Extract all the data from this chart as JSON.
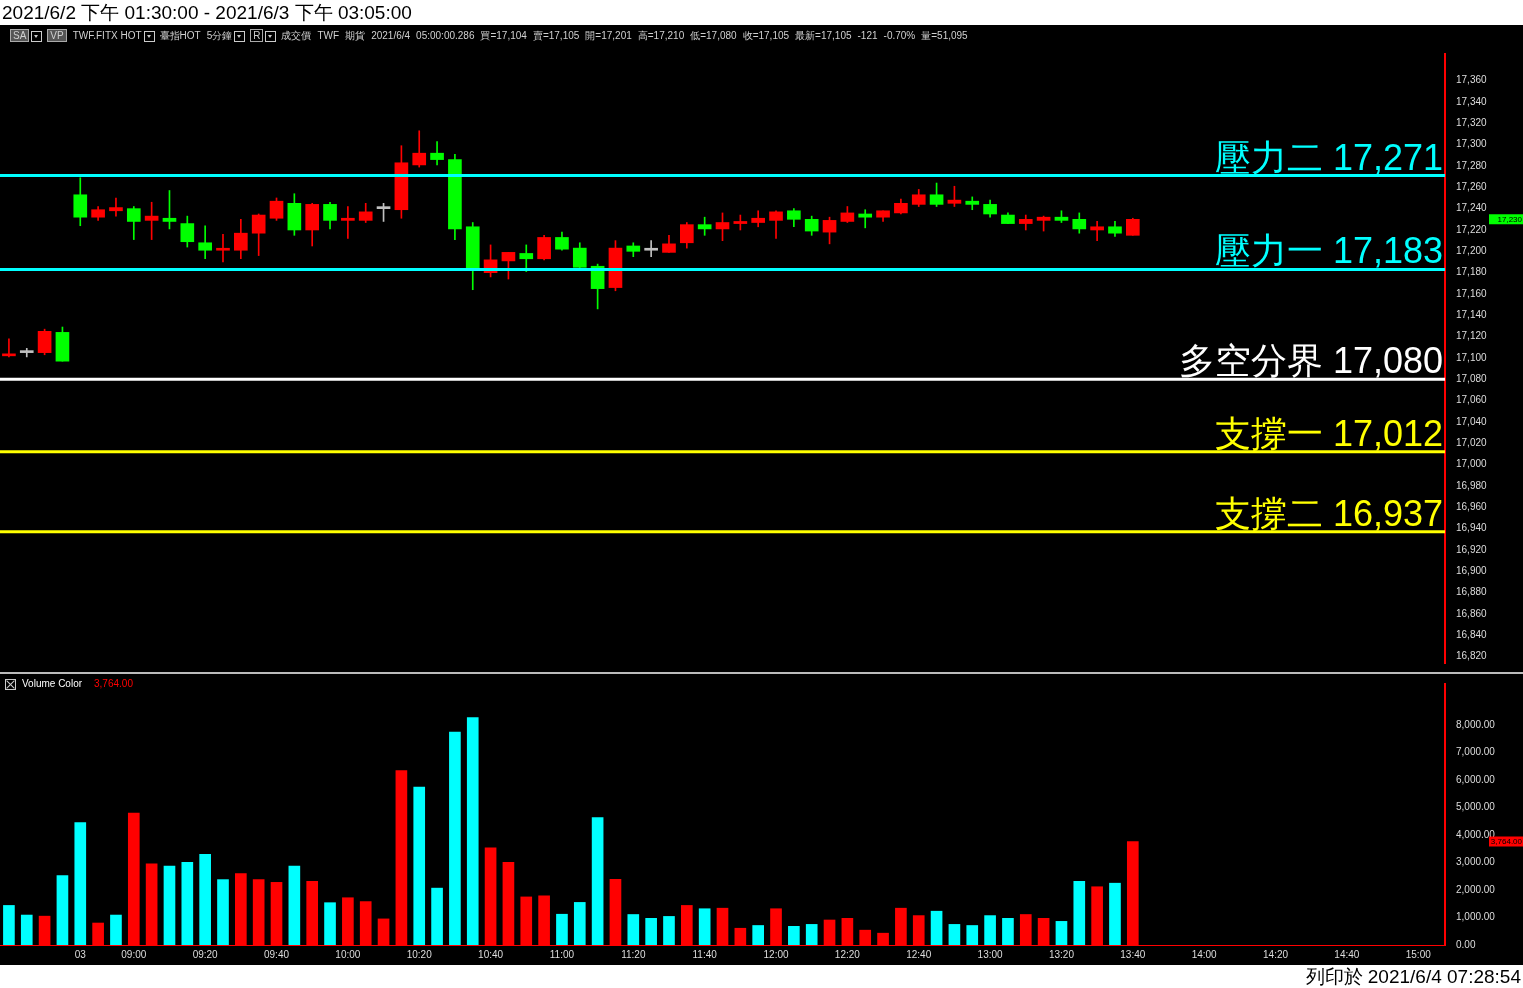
{
  "chart_data": [
    {
      "type": "candlestick",
      "title": "2021/6/2 下午 01:30:00 - 2021/6/3 下午 03:05:00",
      "categories": [
        null,
        null,
        null,
        null,
        null,
        null,
        null,
        null,
        null,
        null,
        null,
        null,
        null,
        null,
        null,
        null,
        null,
        null,
        null,
        null,
        null,
        null,
        null,
        null,
        null,
        null,
        null,
        null,
        null,
        null,
        null,
        null,
        null,
        null,
        null,
        null,
        null,
        null,
        null,
        null,
        null,
        null,
        null,
        null,
        null,
        null,
        null,
        null,
        null,
        null,
        null,
        null,
        null,
        null,
        null,
        null,
        null,
        null,
        null,
        null,
        null,
        null,
        null,
        null,
        null,
        null,
        null,
        null,
        null,
        null,
        null,
        null,
        null,
        null,
        null,
        null,
        null,
        null,
        null,
        null,
        null
      ],
      "ohlc": [
        [
          17102,
          17118,
          17101,
          17103
        ],
        [
          17105,
          17109,
          17101,
          17105
        ],
        [
          17105,
          17127,
          17103,
          17125
        ],
        [
          17124,
          17129,
          17097,
          17097
        ],
        [
          17253,
          17269,
          17224,
          17232
        ],
        [
          17232,
          17242,
          17229,
          17239
        ],
        [
          17238,
          17250,
          17233,
          17241
        ],
        [
          17240,
          17242,
          17211,
          17228
        ],
        [
          17229,
          17246,
          17211,
          17233
        ],
        [
          17231,
          17257,
          17221,
          17228
        ],
        [
          17226,
          17233,
          17204,
          17209
        ],
        [
          17208,
          17224,
          17193,
          17201
        ],
        [
          17201,
          17216,
          17190,
          17202
        ],
        [
          17201,
          17230,
          17193,
          17217
        ],
        [
          17217,
          17235,
          17196,
          17234
        ],
        [
          17231,
          17250,
          17229,
          17247
        ],
        [
          17245,
          17254,
          17215,
          17220
        ],
        [
          17220,
          17245,
          17205,
          17244
        ],
        [
          17244,
          17246,
          17221,
          17229
        ],
        [
          17229,
          17242,
          17212,
          17231
        ],
        [
          17229,
          17245,
          17227,
          17237
        ],
        [
          17240,
          17245,
          17228,
          17240
        ],
        [
          17239,
          17299,
          17231,
          17283
        ],
        [
          17281,
          17313,
          17279,
          17292
        ],
        [
          17292,
          17303,
          17281,
          17286
        ],
        [
          17286,
          17291,
          17211,
          17221
        ],
        [
          17223,
          17227,
          17164,
          17184
        ],
        [
          17180,
          17206,
          17176,
          17192
        ],
        [
          17191,
          17199,
          17174,
          17199
        ],
        [
          17198,
          17206,
          17181,
          17193
        ],
        [
          17193,
          17215,
          17192,
          17213
        ],
        [
          17213,
          17218,
          17201,
          17202
        ],
        [
          17203,
          17208,
          17184,
          17185
        ],
        [
          17186,
          17188,
          17146,
          17165
        ],
        [
          17166,
          17210,
          17163,
          17203
        ],
        [
          17205,
          17208,
          17195,
          17200
        ],
        [
          17201,
          17210,
          17195,
          17201
        ],
        [
          17199,
          17215,
          17199,
          17207
        ],
        [
          17208,
          17227,
          17203,
          17225
        ],
        [
          17225,
          17232,
          17215,
          17221
        ],
        [
          17221,
          17236,
          17210,
          17227
        ],
        [
          17226,
          17234,
          17220,
          17228
        ],
        [
          17227,
          17238,
          17223,
          17231
        ],
        [
          17229,
          17238,
          17212,
          17237
        ],
        [
          17238,
          17240,
          17223,
          17230
        ],
        [
          17230,
          17233,
          17215,
          17219
        ],
        [
          17218,
          17232,
          17207,
          17229
        ],
        [
          17228,
          17242,
          17227,
          17236
        ],
        [
          17235,
          17239,
          17222,
          17232
        ],
        [
          17232,
          17238,
          17228,
          17238
        ],
        [
          17236,
          17249,
          17235,
          17245
        ],
        [
          17244,
          17258,
          17242,
          17253
        ],
        [
          17253,
          17264,
          17242,
          17244
        ],
        [
          17245,
          17261,
          17242,
          17248
        ],
        [
          17247,
          17251,
          17239,
          17244
        ],
        [
          17244,
          17248,
          17232,
          17235
        ],
        [
          17234,
          17236,
          17226,
          17226
        ],
        [
          17226,
          17234,
          17220,
          17230
        ],
        [
          17229,
          17233,
          17219,
          17232
        ],
        [
          17232,
          17238,
          17227,
          17229
        ],
        [
          17230,
          17236,
          17217,
          17221
        ],
        [
          17220,
          17228,
          17210,
          17223
        ],
        [
          17223,
          17228,
          17214,
          17217
        ],
        [
          17215,
          17231,
          17215,
          17230
        ],
        null,
        null,
        null,
        null,
        null,
        null,
        null,
        null,
        null,
        null,
        null,
        null,
        null,
        null,
        null,
        null,
        null
      ],
      "colors": [
        "#ff0000",
        "#c0c0c0",
        "#ff0000",
        "#00ff00",
        "#00ff00",
        "#ff0000",
        "#ff0000",
        "#00ff00",
        "#ff0000",
        "#00ff00",
        "#00ff00",
        "#00ff00",
        "#ff0000",
        "#ff0000",
        "#ff0000",
        "#ff0000",
        "#00ff00",
        "#ff0000",
        "#00ff00",
        "#ff0000",
        "#ff0000",
        "#c0c0c0",
        "#ff0000",
        "#ff0000",
        "#00ff00",
        "#00ff00",
        "#00ff00",
        "#ff0000",
        "#ff0000",
        "#00ff00",
        "#ff0000",
        "#00ff00",
        "#00ff00",
        "#00ff00",
        "#ff0000",
        "#00ff00",
        "#c0c0c0",
        "#ff0000",
        "#ff0000",
        "#00ff00",
        "#ff0000",
        "#ff0000",
        "#ff0000",
        "#ff0000",
        "#00ff00",
        "#00ff00",
        "#ff0000",
        "#ff0000",
        "#00ff00",
        "#ff0000",
        "#ff0000",
        "#ff0000",
        "#00ff00",
        "#ff0000",
        "#00ff00",
        "#00ff00",
        "#00ff00",
        "#ff0000",
        "#ff0000",
        "#00ff00",
        "#00ff00",
        "#ff0000",
        "#00ff00",
        "#ff0000",
        null,
        null,
        null,
        null,
        null,
        null,
        null,
        null,
        null,
        null,
        null,
        null,
        null,
        null,
        null,
        null,
        null
      ],
      "ylim": [
        16814,
        17385
      ],
      "yticks": [
        {
          "value": 16820,
          "label": "16,820"
        },
        {
          "value": 16840,
          "label": "16,840"
        },
        {
          "value": 16860,
          "label": "16,860"
        },
        {
          "value": 16880,
          "label": "16,880"
        },
        {
          "value": 16900,
          "label": "16,900"
        },
        {
          "value": 16920,
          "label": "16,920"
        },
        {
          "value": 16940,
          "label": "16,940"
        },
        {
          "value": 16960,
          "label": "16,960"
        },
        {
          "value": 16980,
          "label": "16,980"
        },
        {
          "value": 17000,
          "label": "17,000"
        },
        {
          "value": 17020,
          "label": "17,020"
        },
        {
          "value": 17040,
          "label": "17,040"
        },
        {
          "value": 17060,
          "label": "17,060"
        },
        {
          "value": 17080,
          "label": "17,080"
        },
        {
          "value": 17100,
          "label": "17,100"
        },
        {
          "value": 17120,
          "label": "17,120"
        },
        {
          "value": 17140,
          "label": "17,140"
        },
        {
          "value": 17160,
          "label": "17,160"
        },
        {
          "value": 17180,
          "label": "17,180"
        },
        {
          "value": 17200,
          "label": "17,200"
        },
        {
          "value": 17220,
          "label": "17,220"
        },
        {
          "value": 17240,
          "label": "17,240"
        },
        {
          "value": 17260,
          "label": "17,260"
        },
        {
          "value": 17280,
          "label": "17,280"
        },
        {
          "value": 17300,
          "label": "17,300"
        },
        {
          "value": 17320,
          "label": "17,320"
        },
        {
          "value": 17340,
          "label": "17,340"
        },
        {
          "value": 17360,
          "label": "17,360"
        }
      ],
      "tick_labels": "y",
      "ref_lines": [
        {
          "axis": "y",
          "value": 17271,
          "label": "壓力二 17,271",
          "color": "#00ffff"
        },
        {
          "axis": "y",
          "value": 17183,
          "label": "壓力一 17,183",
          "color": "#00ffff"
        },
        {
          "axis": "y",
          "value": 17080,
          "label": "多空分界 17,080",
          "color": "#ffffff"
        },
        {
          "axis": "y",
          "value": 17012,
          "label": "支撐一 17,012",
          "color": "#ffff00"
        },
        {
          "axis": "y",
          "value": 16937,
          "label": "支撐二 16,937",
          "color": "#ffff00"
        }
      ],
      "annotations": [
        "SA",
        "VP",
        "TWF.FITX HOT",
        "臺指HOT",
        "5分鐘",
        "R",
        "成交價",
        "TWF",
        "期貨",
        "2021/6/4",
        "05:00:00.286",
        "買=17,104",
        "賣=17,105",
        "開=17,201",
        "高=17,210",
        "低=17,080",
        "收=17,105",
        "最新=17,105",
        "-121",
        "-0.70%",
        "量=51,095",
        "17,230"
      ]
    },
    {
      "type": "bar",
      "title": "Volume Color",
      "categories": [
        null,
        null,
        null,
        null,
        "03",
        null,
        null,
        "09:00",
        null,
        null,
        null,
        "09:20",
        null,
        null,
        null,
        "09:40",
        null,
        null,
        null,
        "10:00",
        null,
        null,
        null,
        "10:20",
        null,
        null,
        null,
        "10:40",
        null,
        null,
        null,
        "11:00",
        null,
        null,
        null,
        "11:20",
        null,
        null,
        null,
        "11:40",
        null,
        null,
        null,
        "12:00",
        null,
        null,
        null,
        "12:20",
        null,
        null,
        null,
        "12:40",
        null,
        null,
        null,
        "13:00",
        null,
        null,
        null,
        "13:20",
        null,
        null,
        null,
        "13:40",
        null,
        null,
        null,
        "14:00",
        null,
        null,
        null,
        "14:20",
        null,
        null,
        null,
        "14:40",
        null,
        null,
        null,
        "15:00",
        null
      ],
      "values": [
        1440,
        1090,
        1050,
        2530,
        4460,
        800,
        1090,
        4800,
        2950,
        2870,
        3010,
        3300,
        2380,
        2600,
        2380,
        2280,
        2870,
        2320,
        1540,
        1720,
        1580,
        950,
        6350,
        5750,
        2070,
        7750,
        8280,
        3540,
        3010,
        1750,
        1790,
        1120,
        1550,
        4640,
        2390,
        1110,
        970,
        1040,
        1440,
        1320,
        1340,
        610,
        710,
        1320,
        680,
        750,
        910,
        970,
        540,
        430,
        1340,
        1070,
        1230,
        750,
        710,
        1070,
        970,
        1110,
        970,
        860,
        2320,
        2120,
        2250,
        3764,
        null,
        null,
        null,
        null,
        null,
        null,
        null,
        null,
        null,
        null,
        null,
        null,
        null,
        null,
        null,
        null,
        null
      ],
      "colors": [
        "#00ffff",
        "#00ffff",
        "#ff0000",
        "#00ffff",
        "#00ffff",
        "#ff0000",
        "#00ffff",
        "#ff0000",
        "#ff0000",
        "#00ffff",
        "#00ffff",
        "#00ffff",
        "#00ffff",
        "#ff0000",
        "#ff0000",
        "#ff0000",
        "#00ffff",
        "#ff0000",
        "#00ffff",
        "#ff0000",
        "#ff0000",
        "#ff0000",
        "#ff0000",
        "#00ffff",
        "#00ffff",
        "#00ffff",
        "#00ffff",
        "#ff0000",
        "#ff0000",
        "#ff0000",
        "#ff0000",
        "#00ffff",
        "#00ffff",
        "#00ffff",
        "#ff0000",
        "#00ffff",
        "#00ffff",
        "#00ffff",
        "#ff0000",
        "#00ffff",
        "#ff0000",
        "#ff0000",
        "#00ffff",
        "#ff0000",
        "#00ffff",
        "#00ffff",
        "#ff0000",
        "#ff0000",
        "#ff0000",
        "#ff0000",
        "#ff0000",
        "#ff0000",
        "#00ffff",
        "#00ffff",
        "#00ffff",
        "#00ffff",
        "#00ffff",
        "#ff0000",
        "#ff0000",
        "#00ffff",
        "#00ffff",
        "#ff0000",
        "#00ffff",
        "#ff0000",
        null,
        null,
        null,
        null,
        null,
        null,
        null,
        null,
        null,
        null,
        null,
        null,
        null,
        null,
        null,
        null,
        null
      ],
      "ylim": [
        0,
        9500
      ],
      "yticks": [
        {
          "value": 0,
          "label": "0.00"
        },
        {
          "value": 1000,
          "label": "1,000.00"
        },
        {
          "value": 2000,
          "label": "2,000.00"
        },
        {
          "value": 3000,
          "label": "3,000.00"
        },
        {
          "value": 4000,
          "label": "4,000.00"
        },
        {
          "value": 5000,
          "label": "5,000.00"
        },
        {
          "value": 6000,
          "label": "6,000.00"
        },
        {
          "value": 7000,
          "label": "7,000.00"
        },
        {
          "value": 8000,
          "label": "8,000.00"
        }
      ],
      "annotations": [
        "3,764.00",
        "列印於 2021/6/4 07:28:54",
        "3,764.00"
      ]
    }
  ]
}
